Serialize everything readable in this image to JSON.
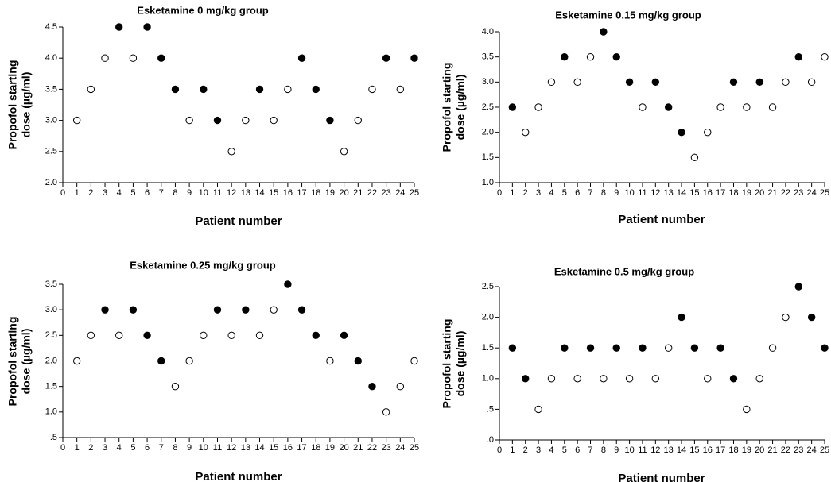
{
  "chart_data": [
    {
      "type": "scatter",
      "title": "Esketamine 0 mg/kg group",
      "xlabel": "Patient number",
      "ylabel_lines": [
        "Propofol starting",
        "dose (µg/ml)"
      ],
      "xlim": [
        0,
        25
      ],
      "ylim": [
        2.0,
        4.5
      ],
      "y_ticks": [
        "2.0",
        "2.5",
        "3.0",
        "3.5",
        "4.0",
        "4.5"
      ],
      "x_ticks": [
        "0",
        "1",
        "2",
        "3",
        "4",
        "5",
        "6",
        "7",
        "8",
        "9",
        "10",
        "11",
        "12",
        "13",
        "14",
        "15",
        "16",
        "17",
        "18",
        "19",
        "20",
        "21",
        "22",
        "23",
        "24",
        "25"
      ],
      "series": [
        {
          "name": "filled",
          "x": [
            4,
            6,
            7,
            8,
            10,
            11,
            14,
            17,
            18,
            19,
            23,
            25
          ],
          "y": [
            4.5,
            4.5,
            4.0,
            3.5,
            3.5,
            3.0,
            3.5,
            4.0,
            3.5,
            3.0,
            4.0,
            4.0
          ]
        },
        {
          "name": "open",
          "x": [
            1,
            2,
            3,
            5,
            9,
            12,
            13,
            15,
            16,
            20,
            21,
            22,
            24
          ],
          "y": [
            3.0,
            3.5,
            4.0,
            4.0,
            3.0,
            2.5,
            3.0,
            3.0,
            3.5,
            2.5,
            3.0,
            3.5,
            3.5
          ]
        }
      ]
    },
    {
      "type": "scatter",
      "title": "Esketamine 0.15 mg/kg group",
      "xlabel": "Patient number",
      "ylabel_lines": [
        "Propofol starting",
        "dose (µg/ml)"
      ],
      "xlim": [
        0,
        25
      ],
      "ylim": [
        1.0,
        4.0
      ],
      "y_ticks": [
        "1.0",
        "1.5",
        "2.0",
        "2.5",
        "3.0",
        "3.5",
        "4.0"
      ],
      "x_ticks": [
        "0",
        "1",
        "2",
        "3",
        "4",
        "5",
        "6",
        "7",
        "8",
        "9",
        "10",
        "11",
        "12",
        "13",
        "14",
        "15",
        "16",
        "17",
        "18",
        "19",
        "20",
        "21",
        "22",
        "23",
        "24",
        "25"
      ],
      "series": [
        {
          "name": "filled",
          "x": [
            1,
            5,
            8,
            9,
            10,
            12,
            13,
            14,
            18,
            20,
            23
          ],
          "y": [
            2.5,
            3.5,
            4.0,
            3.5,
            3.0,
            3.0,
            2.5,
            2.0,
            3.0,
            3.0,
            3.5
          ]
        },
        {
          "name": "open",
          "x": [
            2,
            3,
            4,
            6,
            7,
            11,
            15,
            16,
            17,
            19,
            21,
            22,
            24,
            25
          ],
          "y": [
            2.0,
            2.5,
            3.0,
            3.0,
            3.5,
            2.5,
            1.5,
            2.0,
            2.5,
            2.5,
            2.5,
            3.0,
            3.0,
            3.5
          ]
        }
      ]
    },
    {
      "type": "scatter",
      "title": "Esketamine 0.25 mg/kg group",
      "xlabel": "Patient number",
      "ylabel_lines": [
        "Propofol starting",
        "dose (µg/ml)"
      ],
      "xlim": [
        0,
        25
      ],
      "ylim": [
        0.5,
        3.5
      ],
      "y_ticks": [
        ".5",
        "1.0",
        "1.5",
        "2.0",
        "2.5",
        "3.0",
        "3.5"
      ],
      "x_ticks": [
        "0",
        "1",
        "2",
        "3",
        "4",
        "5",
        "6",
        "7",
        "8",
        "9",
        "10",
        "11",
        "12",
        "13",
        "14",
        "15",
        "16",
        "17",
        "18",
        "19",
        "20",
        "21",
        "22",
        "23",
        "24",
        "25"
      ],
      "series": [
        {
          "name": "filled",
          "x": [
            3,
            5,
            6,
            7,
            11,
            13,
            16,
            17,
            18,
            20,
            21,
            22
          ],
          "y": [
            3.0,
            3.0,
            2.5,
            2.0,
            3.0,
            3.0,
            3.5,
            3.0,
            2.5,
            2.5,
            2.0,
            1.5
          ]
        },
        {
          "name": "open",
          "x": [
            1,
            2,
            4,
            8,
            9,
            10,
            12,
            14,
            15,
            19,
            23,
            24,
            25
          ],
          "y": [
            2.0,
            2.5,
            2.5,
            1.5,
            2.0,
            2.5,
            2.5,
            2.5,
            3.0,
            2.0,
            1.0,
            1.5,
            2.0
          ]
        }
      ]
    },
    {
      "type": "scatter",
      "title": "Esketamine 0.5 mg/kg group",
      "xlabel": "Patient number",
      "ylabel_lines": [
        "Propofol starting",
        "dose (µg/ml)"
      ],
      "xlim": [
        0,
        25
      ],
      "ylim": [
        0.0,
        2.5
      ],
      "y_ticks": [
        ".0",
        ".5",
        "1.0",
        "1.5",
        "2.0",
        "2.5"
      ],
      "x_ticks": [
        "0",
        "1",
        "2",
        "3",
        "4",
        "5",
        "6",
        "7",
        "8",
        "9",
        "10",
        "11",
        "12",
        "13",
        "14",
        "15",
        "16",
        "17",
        "18",
        "19",
        "20",
        "21",
        "22",
        "23",
        "24",
        "25"
      ],
      "series": [
        {
          "name": "filled",
          "x": [
            1,
            2,
            5,
            7,
            9,
            11,
            14,
            15,
            17,
            18,
            23,
            24,
            25
          ],
          "y": [
            1.5,
            1.0,
            1.5,
            1.5,
            1.5,
            1.5,
            2.0,
            1.5,
            1.5,
            1.0,
            2.5,
            2.0,
            1.5
          ]
        },
        {
          "name": "open",
          "x": [
            3,
            4,
            6,
            8,
            10,
            12,
            13,
            16,
            19,
            20,
            21,
            22
          ],
          "y": [
            0.5,
            1.0,
            1.0,
            1.0,
            1.0,
            1.0,
            1.5,
            1.0,
            0.5,
            1.0,
            1.5,
            2.0
          ]
        }
      ]
    }
  ]
}
